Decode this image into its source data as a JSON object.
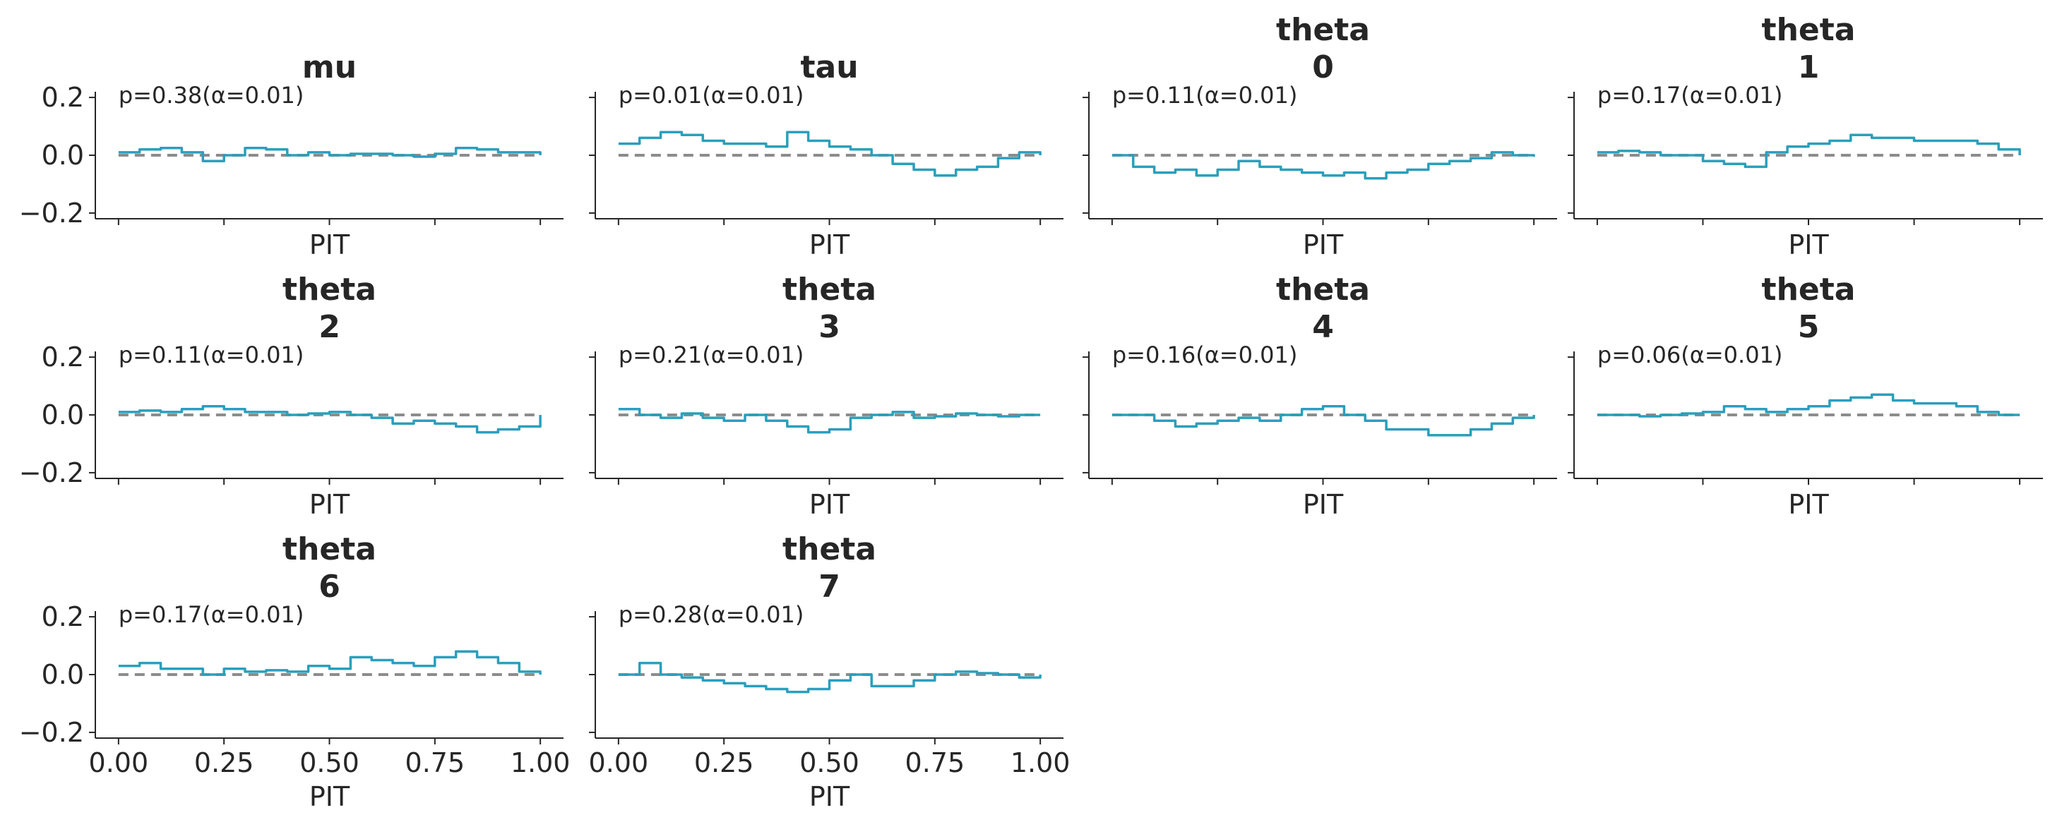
{
  "chart_data": {
    "type": "line",
    "step": true,
    "grid": false,
    "colors": {
      "ecdf": "#2a9fbc",
      "reference": "#8c8c8c"
    },
    "xlabel": "PIT",
    "xlim": [
      0,
      1
    ],
    "ylim": [
      -0.2,
      0.2
    ],
    "xticks": [
      "0.00",
      "0.25",
      "0.50",
      "0.75",
      "1.00"
    ],
    "yticks": [
      "0.2",
      "0.0",
      "−0.2"
    ],
    "panels": [
      {
        "title": [
          "mu"
        ],
        "annotation": "p=0.38(α=0.01)",
        "x": [
          0,
          0.05,
          0.1,
          0.15,
          0.2,
          0.25,
          0.3,
          0.35,
          0.4,
          0.45,
          0.5,
          0.55,
          0.6,
          0.65,
          0.7,
          0.75,
          0.8,
          0.85,
          0.9,
          0.95,
          1.0
        ],
        "y": [
          0.01,
          0.02,
          0.025,
          0.01,
          -0.02,
          0.0,
          0.025,
          0.02,
          0.0,
          0.01,
          0.0,
          0.005,
          0.005,
          0.0,
          -0.005,
          0.005,
          0.025,
          0.02,
          0.01,
          0.01,
          0.0
        ]
      },
      {
        "title": [
          "tau"
        ],
        "annotation": "p=0.01(α=0.01)",
        "x": [
          0,
          0.05,
          0.1,
          0.15,
          0.2,
          0.25,
          0.3,
          0.35,
          0.4,
          0.45,
          0.5,
          0.55,
          0.6,
          0.65,
          0.7,
          0.75,
          0.8,
          0.85,
          0.9,
          0.95,
          1.0
        ],
        "y": [
          0.04,
          0.06,
          0.08,
          0.07,
          0.05,
          0.04,
          0.04,
          0.03,
          0.08,
          0.05,
          0.03,
          0.02,
          0.0,
          -0.03,
          -0.05,
          -0.07,
          -0.05,
          -0.04,
          -0.01,
          0.01,
          0.0
        ]
      },
      {
        "title": [
          "theta",
          "0"
        ],
        "annotation": "p=0.11(α=0.01)",
        "x": [
          0,
          0.05,
          0.1,
          0.15,
          0.2,
          0.25,
          0.3,
          0.35,
          0.4,
          0.45,
          0.5,
          0.55,
          0.6,
          0.65,
          0.7,
          0.75,
          0.8,
          0.85,
          0.9,
          0.95,
          1.0
        ],
        "y": [
          0.0,
          -0.04,
          -0.06,
          -0.05,
          -0.07,
          -0.05,
          -0.02,
          -0.04,
          -0.05,
          -0.06,
          -0.07,
          -0.06,
          -0.08,
          -0.06,
          -0.05,
          -0.03,
          -0.02,
          -0.01,
          0.01,
          0.0,
          -0.005
        ]
      },
      {
        "title": [
          "theta",
          "1"
        ],
        "annotation": "p=0.17(α=0.01)",
        "x": [
          0,
          0.05,
          0.1,
          0.15,
          0.2,
          0.25,
          0.3,
          0.35,
          0.4,
          0.45,
          0.5,
          0.55,
          0.6,
          0.65,
          0.7,
          0.75,
          0.8,
          0.85,
          0.9,
          0.95,
          1.0
        ],
        "y": [
          0.01,
          0.015,
          0.01,
          0.0,
          0.0,
          -0.02,
          -0.03,
          -0.04,
          0.01,
          0.03,
          0.04,
          0.05,
          0.07,
          0.06,
          0.06,
          0.05,
          0.05,
          0.05,
          0.04,
          0.02,
          0.0
        ]
      },
      {
        "title": [
          "theta",
          "2"
        ],
        "annotation": "p=0.11(α=0.01)",
        "x": [
          0,
          0.05,
          0.1,
          0.15,
          0.2,
          0.25,
          0.3,
          0.35,
          0.4,
          0.45,
          0.5,
          0.55,
          0.6,
          0.65,
          0.7,
          0.75,
          0.8,
          0.85,
          0.9,
          0.95,
          1.0
        ],
        "y": [
          0.01,
          0.015,
          0.01,
          0.02,
          0.03,
          0.02,
          0.01,
          0.01,
          0.0,
          0.005,
          0.01,
          0.0,
          -0.01,
          -0.03,
          -0.02,
          -0.03,
          -0.04,
          -0.06,
          -0.05,
          -0.04,
          0.0
        ]
      },
      {
        "title": [
          "theta",
          "3"
        ],
        "annotation": "p=0.21(α=0.01)",
        "x": [
          0,
          0.05,
          0.1,
          0.15,
          0.2,
          0.25,
          0.3,
          0.35,
          0.4,
          0.45,
          0.5,
          0.55,
          0.6,
          0.65,
          0.7,
          0.75,
          0.8,
          0.85,
          0.9,
          0.95,
          1.0
        ],
        "y": [
          0.02,
          0.0,
          -0.01,
          0.005,
          -0.01,
          -0.02,
          0.0,
          -0.02,
          -0.04,
          -0.06,
          -0.05,
          -0.01,
          0.0,
          0.01,
          -0.01,
          -0.005,
          0.005,
          0.0,
          -0.005,
          0.0,
          0.0
        ]
      },
      {
        "title": [
          "theta",
          "4"
        ],
        "annotation": "p=0.16(α=0.01)",
        "x": [
          0,
          0.05,
          0.1,
          0.15,
          0.2,
          0.25,
          0.3,
          0.35,
          0.4,
          0.45,
          0.5,
          0.55,
          0.6,
          0.65,
          0.7,
          0.75,
          0.8,
          0.85,
          0.9,
          0.95,
          1.0
        ],
        "y": [
          0.0,
          0.0,
          -0.02,
          -0.04,
          -0.03,
          -0.02,
          -0.01,
          -0.02,
          0.0,
          0.02,
          0.03,
          0.0,
          -0.02,
          -0.05,
          -0.05,
          -0.07,
          -0.07,
          -0.05,
          -0.03,
          -0.01,
          0.0
        ]
      },
      {
        "title": [
          "theta",
          "5"
        ],
        "annotation": "p=0.06(α=0.01)",
        "x": [
          0,
          0.05,
          0.1,
          0.15,
          0.2,
          0.25,
          0.3,
          0.35,
          0.4,
          0.45,
          0.5,
          0.55,
          0.6,
          0.65,
          0.7,
          0.75,
          0.8,
          0.85,
          0.9,
          0.95,
          1.0
        ],
        "y": [
          0.0,
          0.0,
          -0.005,
          0.0,
          0.005,
          0.01,
          0.03,
          0.02,
          0.01,
          0.02,
          0.03,
          0.05,
          0.06,
          0.07,
          0.05,
          0.04,
          0.04,
          0.03,
          0.01,
          0.0,
          0.0
        ]
      },
      {
        "title": [
          "theta",
          "6"
        ],
        "annotation": "p=0.17(α=0.01)",
        "x": [
          0,
          0.05,
          0.1,
          0.15,
          0.2,
          0.25,
          0.3,
          0.35,
          0.4,
          0.45,
          0.5,
          0.55,
          0.6,
          0.65,
          0.7,
          0.75,
          0.8,
          0.85,
          0.9,
          0.95,
          1.0
        ],
        "y": [
          0.03,
          0.04,
          0.02,
          0.02,
          0.0,
          0.02,
          0.01,
          0.015,
          0.01,
          0.03,
          0.02,
          0.06,
          0.05,
          0.04,
          0.03,
          0.06,
          0.08,
          0.06,
          0.04,
          0.01,
          0.0
        ]
      },
      {
        "title": [
          "theta",
          "7"
        ],
        "annotation": "p=0.28(α=0.01)",
        "x": [
          0,
          0.05,
          0.1,
          0.15,
          0.2,
          0.25,
          0.3,
          0.35,
          0.4,
          0.45,
          0.5,
          0.55,
          0.6,
          0.65,
          0.7,
          0.75,
          0.8,
          0.85,
          0.9,
          0.95,
          1.0
        ],
        "y": [
          0.0,
          0.04,
          0.0,
          -0.01,
          -0.02,
          -0.03,
          -0.04,
          -0.05,
          -0.06,
          -0.05,
          -0.02,
          0.0,
          -0.04,
          -0.04,
          -0.02,
          0.0,
          0.01,
          0.005,
          0.0,
          -0.01,
          0.0
        ]
      }
    ]
  }
}
